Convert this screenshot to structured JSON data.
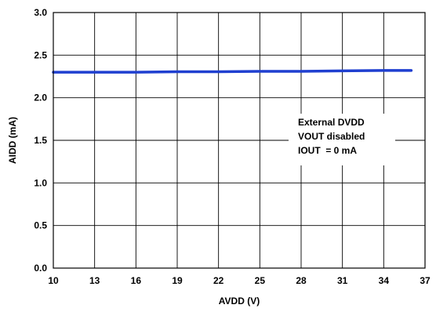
{
  "chart_data": {
    "type": "line",
    "xlabel": "AVDD (V)",
    "ylabel": "AIDD (mA)",
    "xlim": [
      10,
      37
    ],
    "ylim": [
      0.0,
      3.0
    ],
    "x_ticks": [
      "10",
      "13",
      "16",
      "19",
      "22",
      "25",
      "28",
      "31",
      "34",
      "37"
    ],
    "y_ticks": [
      "0.0",
      "0.5",
      "1.0",
      "1.5",
      "2.0",
      "2.5",
      "3.0"
    ],
    "grid": true,
    "series": [
      {
        "color": "#1f3fd0",
        "x": [
          10,
          13,
          16,
          19,
          22,
          25,
          28,
          31,
          34,
          36
        ],
        "y": [
          2.3,
          2.3,
          2.3,
          2.305,
          2.305,
          2.31,
          2.31,
          2.315,
          2.32,
          2.32
        ]
      }
    ],
    "annotation_lines": [
      "External DVDD",
      "VOUT disabled",
      "IOUT  = 0 mA"
    ]
  }
}
